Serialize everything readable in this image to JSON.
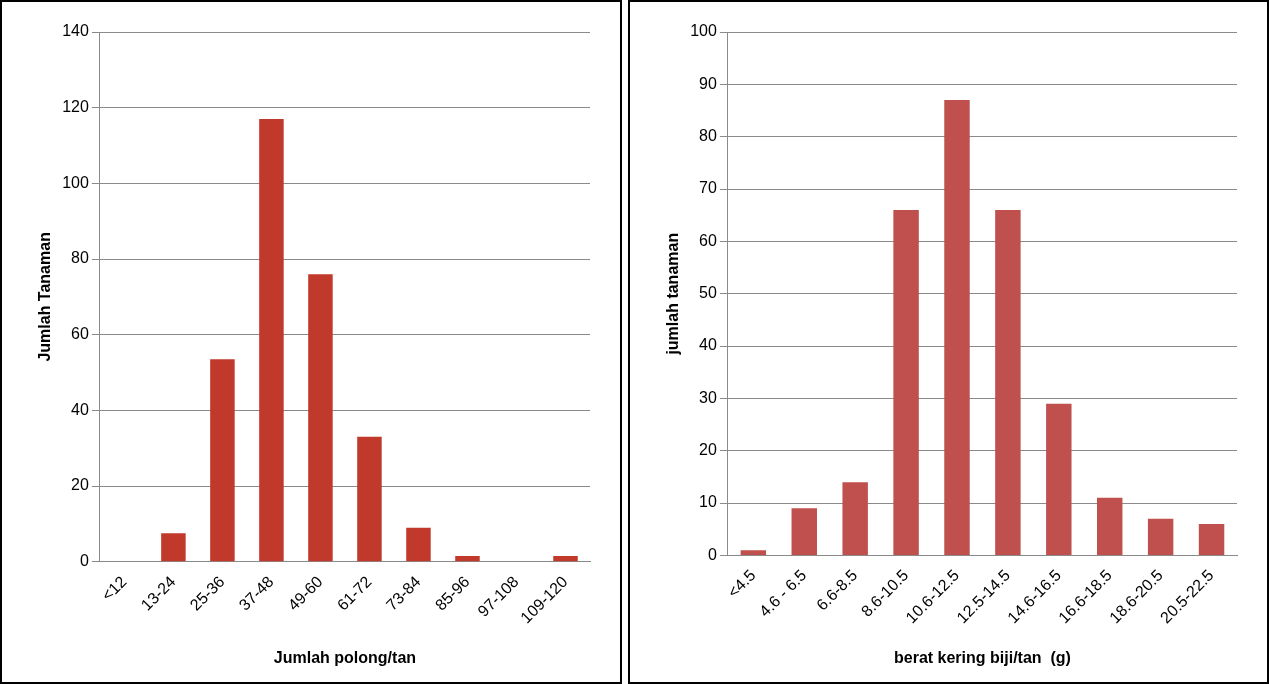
{
  "chart_data": [
    {
      "type": "bar",
      "xlabel": "Jumlah polong/tan",
      "ylabel": "Jumlah Tanaman",
      "categories": [
        "<12",
        "13-24",
        "25-36",
        "37-48",
        "49-60",
        "61-72",
        "73-84",
        "85-96",
        "97-108",
        "109-120"
      ],
      "values": [
        0,
        7.5,
        53.5,
        117,
        76,
        33,
        9,
        1.5,
        0,
        1.5
      ],
      "color": "#c0392b",
      "ylim": [
        0,
        140
      ],
      "yticks": [
        0,
        20,
        40,
        60,
        80,
        100,
        120,
        140
      ],
      "grid": "y",
      "legend": false
    },
    {
      "type": "bar",
      "xlabel": "berat kering biji/tan  (g)",
      "ylabel": "jumlah tanaman",
      "categories": [
        "<4.5",
        "4.6 - 6.5",
        "6.6-8.5",
        "8.6-10.5",
        "10.6-12.5",
        "12.5-14.5",
        "14.6-16.5",
        "16.6-18.5",
        "18.6-20.5",
        "20.5-22.5"
      ],
      "values": [
        1,
        9,
        14,
        66,
        87,
        66,
        29,
        11,
        7,
        6
      ],
      "color": "#c0504d",
      "ylim": [
        0,
        100
      ],
      "yticks": [
        0,
        10,
        20,
        30,
        40,
        50,
        60,
        70,
        80,
        90,
        100
      ],
      "grid": "y",
      "legend": false
    }
  ]
}
